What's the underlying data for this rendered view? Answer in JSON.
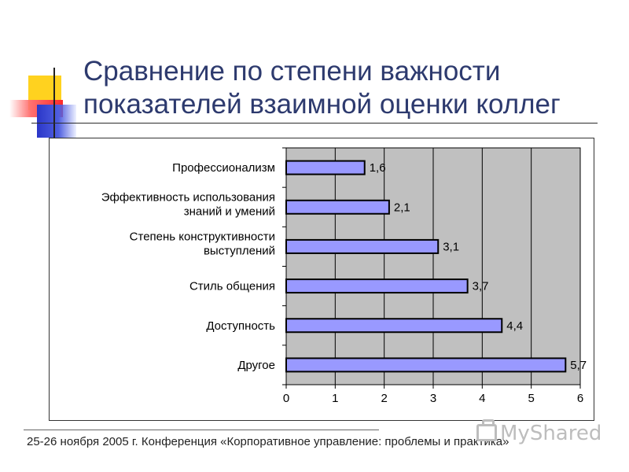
{
  "title": {
    "line1": "Сравнение по степени важности",
    "line2": "показателей взаимной оценки  коллег"
  },
  "footer": {
    "text": "25-26 ноября 2005 г. Конференция «Корпоративное управление: проблемы и практика»"
  },
  "watermark": {
    "text": "MyShared",
    "icon": "briefcase-icon"
  },
  "chart_data": {
    "type": "bar",
    "orientation": "horizontal",
    "categories": [
      [
        "Профессионализм"
      ],
      [
        "Эффективность использования",
        "знаний и умений"
      ],
      [
        "Степень конструктивности",
        "выступлений"
      ],
      [
        "Стиль общения"
      ],
      [
        "Доступность"
      ],
      [
        "Другое"
      ]
    ],
    "values": [
      1.6,
      2.1,
      3.1,
      3.7,
      4.4,
      5.7
    ],
    "value_labels": [
      "1,6",
      "2,1",
      "3,1",
      "3,7",
      "4,4",
      "5,7"
    ],
    "x_ticks": [
      "0",
      "1",
      "2",
      "3",
      "4",
      "5",
      "6"
    ],
    "xlim": [
      0,
      6
    ],
    "grid": true,
    "legend": "none",
    "colors": {
      "bar_fill": "#9999ff",
      "bar_stroke": "#000000",
      "plot_background": "#c0c0c0",
      "grid": "#000000"
    }
  }
}
